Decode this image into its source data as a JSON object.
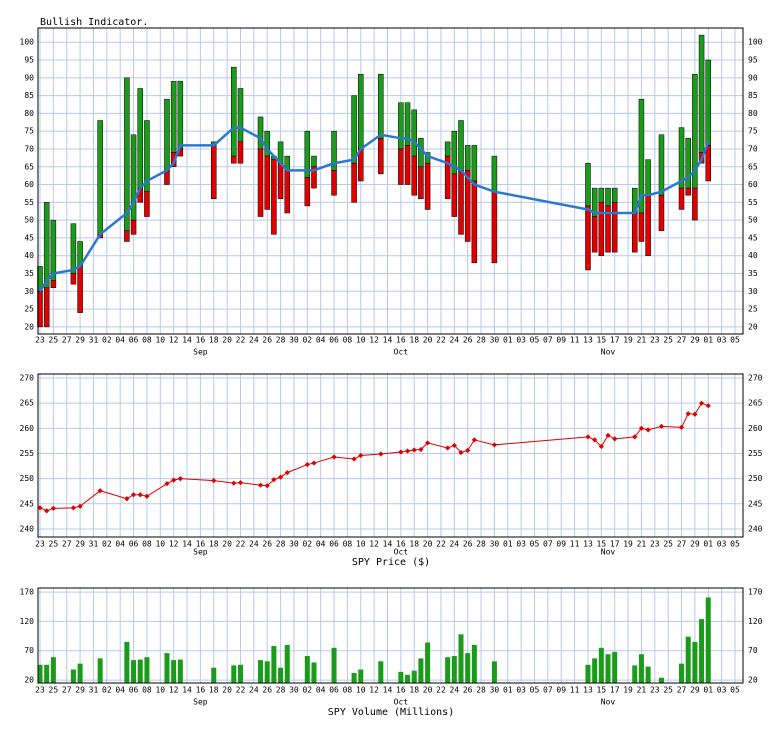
{
  "chart_data": [
    {
      "type": "range_bar",
      "title": "Bullish Indicator.",
      "x": [
        0,
        1,
        2,
        5,
        6,
        9,
        13,
        14,
        15,
        16,
        19,
        20,
        21,
        26,
        29,
        30,
        33,
        34,
        35,
        36,
        37,
        40,
        41,
        44,
        47,
        48,
        51,
        54,
        55,
        56,
        57,
        58,
        61,
        62,
        63,
        64,
        65,
        68,
        82,
        83,
        84,
        85,
        86,
        89,
        90,
        91,
        93,
        96,
        97,
        98,
        99,
        100
      ],
      "low": [
        20,
        20,
        31,
        32,
        24,
        45,
        44,
        46,
        55,
        51,
        60,
        65,
        68,
        56,
        66,
        66,
        51,
        53,
        46,
        56,
        52,
        54,
        59,
        57,
        55,
        61,
        63,
        60,
        60,
        57,
        56,
        53,
        56,
        51,
        46,
        44,
        38,
        38,
        36,
        41,
        40,
        41,
        41,
        41,
        44,
        40,
        47,
        53,
        57,
        50,
        66,
        61
      ],
      "mid": [
        30,
        31,
        33,
        35,
        37,
        46,
        47,
        50,
        59,
        58,
        64,
        69,
        70,
        71,
        68,
        72,
        70,
        68,
        67,
        66,
        64,
        62,
        65,
        64,
        66,
        70,
        73,
        70,
        71,
        68,
        65,
        66,
        68,
        63,
        64,
        64,
        61,
        58,
        54,
        51,
        55,
        54,
        55,
        52,
        52,
        57,
        57,
        59,
        59,
        59,
        69,
        71
      ],
      "high": [
        37,
        55,
        50,
        49,
        44,
        78,
        90,
        74,
        87,
        78,
        84,
        89,
        89,
        72,
        93,
        87,
        79,
        75,
        68,
        72,
        68,
        75,
        68,
        75,
        85,
        91,
        91,
        83,
        83,
        81,
        73,
        69,
        72,
        75,
        78,
        71,
        71,
        68,
        66,
        59,
        59,
        59,
        59,
        59,
        84,
        67,
        74,
        76,
        73,
        91,
        102,
        95
      ],
      "line_values": [
        30,
        33,
        35,
        36,
        37,
        46,
        52,
        55,
        59,
        61,
        64,
        66,
        71,
        71,
        76,
        76,
        73,
        70,
        68,
        66,
        64,
        64,
        64,
        66,
        67,
        70,
        74,
        73,
        73,
        72,
        70,
        68,
        66,
        65,
        64,
        62,
        60,
        58,
        53,
        52,
        52,
        52,
        52,
        52,
        57,
        57,
        58,
        61,
        62,
        64,
        67,
        72
      ],
      "up_color": "#1a9b1a",
      "down_color": "#e00000",
      "line_color": "#2a78d0",
      "xlim": [
        -0.3,
        105.2
      ],
      "xticks": [
        {
          "value": 0,
          "label": "23"
        },
        {
          "value": 2,
          "label": "25"
        },
        {
          "value": 4,
          "label": "27"
        },
        {
          "value": 6,
          "label": "29"
        },
        {
          "value": 8,
          "label": "31"
        },
        {
          "value": 10,
          "label": "02"
        },
        {
          "value": 12,
          "label": "04"
        },
        {
          "value": 14,
          "label": "06"
        },
        {
          "value": 16,
          "label": "08"
        },
        {
          "value": 18,
          "label": "10"
        },
        {
          "value": 20,
          "label": "12"
        },
        {
          "value": 22,
          "label": "14"
        },
        {
          "value": 24,
          "label": "16"
        },
        {
          "value": 26,
          "label": "18"
        },
        {
          "value": 28,
          "label": "20"
        },
        {
          "value": 30,
          "label": "22"
        },
        {
          "value": 32,
          "label": "24"
        },
        {
          "value": 34,
          "label": "26"
        },
        {
          "value": 36,
          "label": "28"
        },
        {
          "value": 38,
          "label": "30"
        },
        {
          "value": 40,
          "label": "02"
        },
        {
          "value": 42,
          "label": "04"
        },
        {
          "value": 44,
          "label": "06"
        },
        {
          "value": 46,
          "label": "08"
        },
        {
          "value": 48,
          "label": "10"
        },
        {
          "value": 50,
          "label": "12"
        },
        {
          "value": 52,
          "label": "14"
        },
        {
          "value": 54,
          "label": "16"
        },
        {
          "value": 56,
          "label": "18"
        },
        {
          "value": 58,
          "label": "20"
        },
        {
          "value": 60,
          "label": "22"
        },
        {
          "value": 62,
          "label": "24"
        },
        {
          "value": 64,
          "label": "26"
        },
        {
          "value": 66,
          "label": "28"
        },
        {
          "value": 68,
          "label": "30"
        },
        {
          "value": 70,
          "label": "01"
        },
        {
          "value": 72,
          "label": "03"
        },
        {
          "value": 74,
          "label": "05"
        },
        {
          "value": 76,
          "label": "07"
        },
        {
          "value": 78,
          "label": "09"
        },
        {
          "value": 80,
          "label": "11"
        },
        {
          "value": 82,
          "label": "13"
        },
        {
          "value": 84,
          "label": "15"
        },
        {
          "value": 86,
          "label": "17"
        },
        {
          "value": 88,
          "label": "19"
        },
        {
          "value": 90,
          "label": "21"
        },
        {
          "value": 92,
          "label": "23"
        },
        {
          "value": 94,
          "label": "25"
        },
        {
          "value": 96,
          "label": "27"
        },
        {
          "value": 98,
          "label": "29"
        },
        {
          "value": 100,
          "label": "01"
        },
        {
          "value": 102,
          "label": "03"
        },
        {
          "value": 104,
          "label": "05"
        }
      ],
      "month_ticks": [
        {
          "value": 24,
          "label": "Sep"
        },
        {
          "value": 54,
          "label": "Oct"
        },
        {
          "value": 85,
          "label": "Nov"
        }
      ],
      "ylim": [
        18,
        104
      ],
      "yticks": [
        20,
        25,
        30,
        35,
        40,
        45,
        50,
        55,
        60,
        65,
        70,
        75,
        80,
        85,
        90,
        95,
        100
      ],
      "grid": true
    },
    {
      "type": "line",
      "title": "SPY Price ($)",
      "x": [
        0,
        1,
        2,
        5,
        6,
        9,
        13,
        14,
        15,
        16,
        19,
        20,
        21,
        26,
        29,
        30,
        33,
        34,
        35,
        36,
        37,
        40,
        41,
        44,
        47,
        48,
        51,
        54,
        55,
        56,
        57,
        58,
        61,
        62,
        63,
        64,
        65,
        68,
        82,
        83,
        84,
        85,
        86,
        89,
        90,
        91,
        93,
        96,
        97,
        98,
        99,
        100
      ],
      "values": [
        244.2,
        243.6,
        244.1,
        244.2,
        244.5,
        247.6,
        246,
        246.8,
        246.8,
        246.5,
        249,
        249.7,
        250,
        249.6,
        249.1,
        249.2,
        248.7,
        248.6,
        249.8,
        250.3,
        251.2,
        252.8,
        253.1,
        254.3,
        253.9,
        254.6,
        254.9,
        255.3,
        255.5,
        255.7,
        255.8,
        257.1,
        256.1,
        256.6,
        255.2,
        255.6,
        257.7,
        256.7,
        258.3,
        257.7,
        256.4,
        258.6,
        257.9,
        258.3,
        260,
        259.7,
        260.4,
        260.2,
        262.9,
        262.8,
        265,
        264.5
      ],
      "color": "#e00000",
      "xlim": [
        -0.3,
        105.2
      ],
      "xticks": [
        {
          "value": 0,
          "label": "23"
        },
        {
          "value": 2,
          "label": "25"
        },
        {
          "value": 4,
          "label": "27"
        },
        {
          "value": 6,
          "label": "29"
        },
        {
          "value": 8,
          "label": "31"
        },
        {
          "value": 10,
          "label": "02"
        },
        {
          "value": 12,
          "label": "04"
        },
        {
          "value": 14,
          "label": "06"
        },
        {
          "value": 16,
          "label": "08"
        },
        {
          "value": 18,
          "label": "10"
        },
        {
          "value": 20,
          "label": "12"
        },
        {
          "value": 22,
          "label": "14"
        },
        {
          "value": 24,
          "label": "16"
        },
        {
          "value": 26,
          "label": "18"
        },
        {
          "value": 28,
          "label": "20"
        },
        {
          "value": 30,
          "label": "22"
        },
        {
          "value": 32,
          "label": "24"
        },
        {
          "value": 34,
          "label": "26"
        },
        {
          "value": 36,
          "label": "28"
        },
        {
          "value": 38,
          "label": "30"
        },
        {
          "value": 40,
          "label": "02"
        },
        {
          "value": 42,
          "label": "04"
        },
        {
          "value": 44,
          "label": "06"
        },
        {
          "value": 46,
          "label": "08"
        },
        {
          "value": 48,
          "label": "10"
        },
        {
          "value": 50,
          "label": "12"
        },
        {
          "value": 52,
          "label": "14"
        },
        {
          "value": 54,
          "label": "16"
        },
        {
          "value": 56,
          "label": "18"
        },
        {
          "value": 58,
          "label": "20"
        },
        {
          "value": 60,
          "label": "22"
        },
        {
          "value": 62,
          "label": "24"
        },
        {
          "value": 64,
          "label": "26"
        },
        {
          "value": 66,
          "label": "28"
        },
        {
          "value": 68,
          "label": "30"
        },
        {
          "value": 70,
          "label": "01"
        },
        {
          "value": 72,
          "label": "03"
        },
        {
          "value": 74,
          "label": "05"
        },
        {
          "value": 76,
          "label": "07"
        },
        {
          "value": 78,
          "label": "09"
        },
        {
          "value": 80,
          "label": "11"
        },
        {
          "value": 82,
          "label": "13"
        },
        {
          "value": 84,
          "label": "15"
        },
        {
          "value": 86,
          "label": "17"
        },
        {
          "value": 88,
          "label": "19"
        },
        {
          "value": 90,
          "label": "21"
        },
        {
          "value": 92,
          "label": "23"
        },
        {
          "value": 94,
          "label": "25"
        },
        {
          "value": 96,
          "label": "27"
        },
        {
          "value": 98,
          "label": "29"
        },
        {
          "value": 100,
          "label": "01"
        },
        {
          "value": 102,
          "label": "03"
        },
        {
          "value": 104,
          "label": "05"
        }
      ],
      "month_ticks": [
        {
          "value": 24,
          "label": "Sep"
        },
        {
          "value": 54,
          "label": "Oct"
        },
        {
          "value": 85,
          "label": "Nov"
        }
      ],
      "ylim": [
        238.4,
        270.8
      ],
      "yticks": [
        240,
        245,
        250,
        255,
        260,
        265,
        270
      ],
      "grid": true
    },
    {
      "type": "bar",
      "title": "SPY Volume (Millions)",
      "x": [
        0,
        1,
        2,
        5,
        6,
        9,
        13,
        14,
        15,
        16,
        19,
        20,
        21,
        26,
        29,
        30,
        33,
        34,
        35,
        36,
        37,
        40,
        41,
        44,
        47,
        48,
        51,
        54,
        55,
        56,
        57,
        58,
        61,
        62,
        63,
        64,
        65,
        68,
        82,
        83,
        84,
        85,
        86,
        89,
        90,
        91,
        93,
        96,
        97,
        98,
        99,
        100
      ],
      "values": [
        46,
        46,
        59,
        38,
        48,
        57,
        85,
        54,
        55,
        59,
        66,
        54,
        55,
        41,
        45,
        46,
        54,
        52,
        78,
        41,
        80,
        61,
        50,
        75,
        32,
        38,
        52,
        34,
        29,
        36,
        57,
        84,
        59,
        61,
        98,
        66,
        80,
        52,
        46,
        57,
        75,
        64,
        68,
        45,
        64,
        43,
        24,
        48,
        94,
        85,
        124,
        161
      ],
      "color": "#1a9b1a",
      "xlim": [
        -0.3,
        105.2
      ],
      "xticks": [
        {
          "value": 0,
          "label": "23"
        },
        {
          "value": 2,
          "label": "25"
        },
        {
          "value": 4,
          "label": "27"
        },
        {
          "value": 6,
          "label": "29"
        },
        {
          "value": 8,
          "label": "31"
        },
        {
          "value": 10,
          "label": "02"
        },
        {
          "value": 12,
          "label": "04"
        },
        {
          "value": 14,
          "label": "06"
        },
        {
          "value": 16,
          "label": "08"
        },
        {
          "value": 18,
          "label": "10"
        },
        {
          "value": 20,
          "label": "12"
        },
        {
          "value": 22,
          "label": "14"
        },
        {
          "value": 24,
          "label": "16"
        },
        {
          "value": 26,
          "label": "18"
        },
        {
          "value": 28,
          "label": "20"
        },
        {
          "value": 30,
          "label": "22"
        },
        {
          "value": 32,
          "label": "24"
        },
        {
          "value": 34,
          "label": "26"
        },
        {
          "value": 36,
          "label": "28"
        },
        {
          "value": 38,
          "label": "30"
        },
        {
          "value": 40,
          "label": "02"
        },
        {
          "value": 42,
          "label": "04"
        },
        {
          "value": 44,
          "label": "06"
        },
        {
          "value": 46,
          "label": "08"
        },
        {
          "value": 48,
          "label": "10"
        },
        {
          "value": 50,
          "label": "12"
        },
        {
          "value": 52,
          "label": "14"
        },
        {
          "value": 54,
          "label": "16"
        },
        {
          "value": 56,
          "label": "18"
        },
        {
          "value": 58,
          "label": "20"
        },
        {
          "value": 60,
          "label": "22"
        },
        {
          "value": 62,
          "label": "24"
        },
        {
          "value": 64,
          "label": "26"
        },
        {
          "value": 66,
          "label": "28"
        },
        {
          "value": 68,
          "label": "30"
        },
        {
          "value": 70,
          "label": "01"
        },
        {
          "value": 72,
          "label": "03"
        },
        {
          "value": 74,
          "label": "05"
        },
        {
          "value": 76,
          "label": "07"
        },
        {
          "value": 78,
          "label": "09"
        },
        {
          "value": 80,
          "label": "11"
        },
        {
          "value": 82,
          "label": "13"
        },
        {
          "value": 84,
          "label": "15"
        },
        {
          "value": 86,
          "label": "17"
        },
        {
          "value": 88,
          "label": "19"
        },
        {
          "value": 90,
          "label": "21"
        },
        {
          "value": 92,
          "label": "23"
        },
        {
          "value": 94,
          "label": "25"
        },
        {
          "value": 96,
          "label": "27"
        },
        {
          "value": 98,
          "label": "29"
        },
        {
          "value": 100,
          "label": "01"
        },
        {
          "value": 102,
          "label": "03"
        },
        {
          "value": 104,
          "label": "05"
        }
      ],
      "month_ticks": [
        {
          "value": 24,
          "label": "Sep"
        },
        {
          "value": 54,
          "label": "Oct"
        },
        {
          "value": 85,
          "label": "Nov"
        }
      ],
      "ylim": [
        15,
        177
      ],
      "yticks": [
        20,
        70,
        120,
        170
      ],
      "grid": true
    }
  ]
}
